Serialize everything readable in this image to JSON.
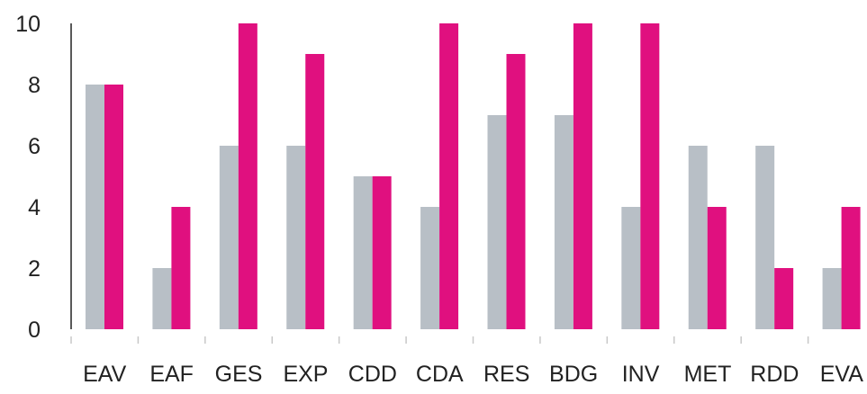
{
  "chart_data": {
    "type": "bar",
    "title": "",
    "xlabel": "",
    "ylabel": "",
    "categories": [
      "EAV",
      "EAF",
      "GES",
      "EXP",
      "CDD",
      "CDA",
      "RES",
      "BDG",
      "INV",
      "MET",
      "RDD",
      "EVA"
    ],
    "series": [
      {
        "values": [
          8,
          2,
          6,
          6,
          5,
          4,
          7,
          7,
          4,
          6,
          6,
          2
        ],
        "color": "#b8bfc6"
      },
      {
        "values": [
          8,
          4,
          10,
          9,
          5,
          10,
          9,
          10,
          10,
          4,
          2,
          4
        ],
        "color": "#e0107f"
      }
    ],
    "ylim": [
      0,
      10
    ],
    "yticks": [
      "0",
      "2",
      "4",
      "6",
      "8",
      "10"
    ],
    "grid": false,
    "legend": "none"
  }
}
